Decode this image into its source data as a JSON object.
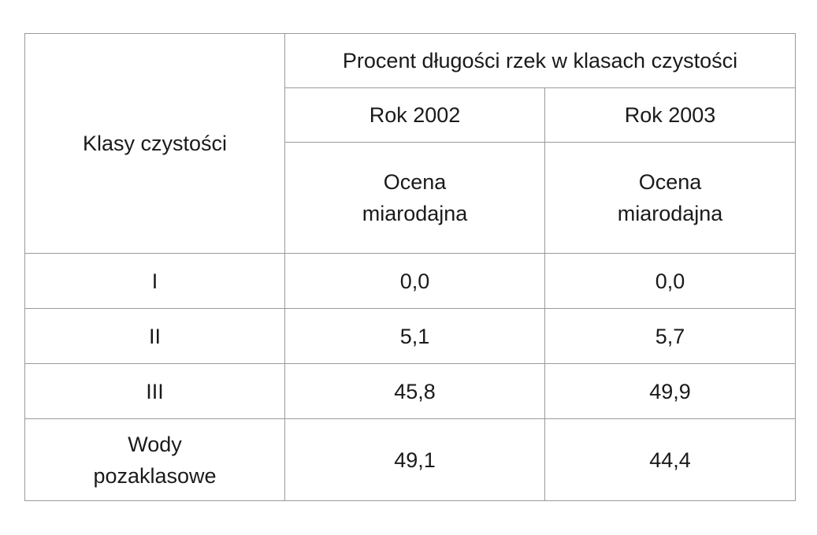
{
  "table": {
    "header": {
      "row_label": "Klasy czystości",
      "group_label": "Procent długości rzek w klasach czystości",
      "years": [
        "Rok 2002",
        "Rok 2003"
      ],
      "assessment": [
        "Ocena\nmiarodajna",
        "Ocena\nmiarodajna"
      ]
    },
    "rows": [
      {
        "class": "I",
        "v2002": "0,0",
        "v2003": "0,0"
      },
      {
        "class": "II",
        "v2002": "5,1",
        "v2003": "5,7"
      },
      {
        "class": "III",
        "v2002": "45,8",
        "v2003": "49,9"
      },
      {
        "class": "Wody\npozaklasowe",
        "v2002": "49,1",
        "v2003": "44,4"
      }
    ]
  }
}
